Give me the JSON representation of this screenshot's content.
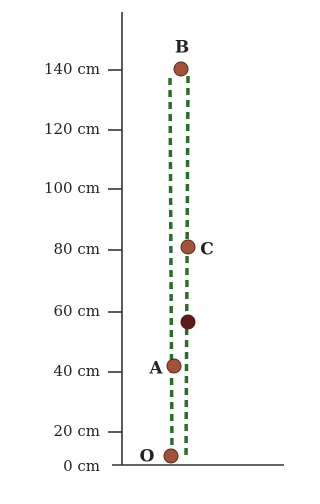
{
  "axis": {
    "ticks": [
      "140 cm",
      "120 cm",
      "100 cm",
      "80 cm",
      "60 cm",
      "40 cm",
      "20 cm",
      "0 cm"
    ]
  },
  "points": [
    {
      "label": "B"
    },
    {
      "label": "C"
    },
    {
      "label": "A"
    },
    {
      "label": "O"
    }
  ]
}
